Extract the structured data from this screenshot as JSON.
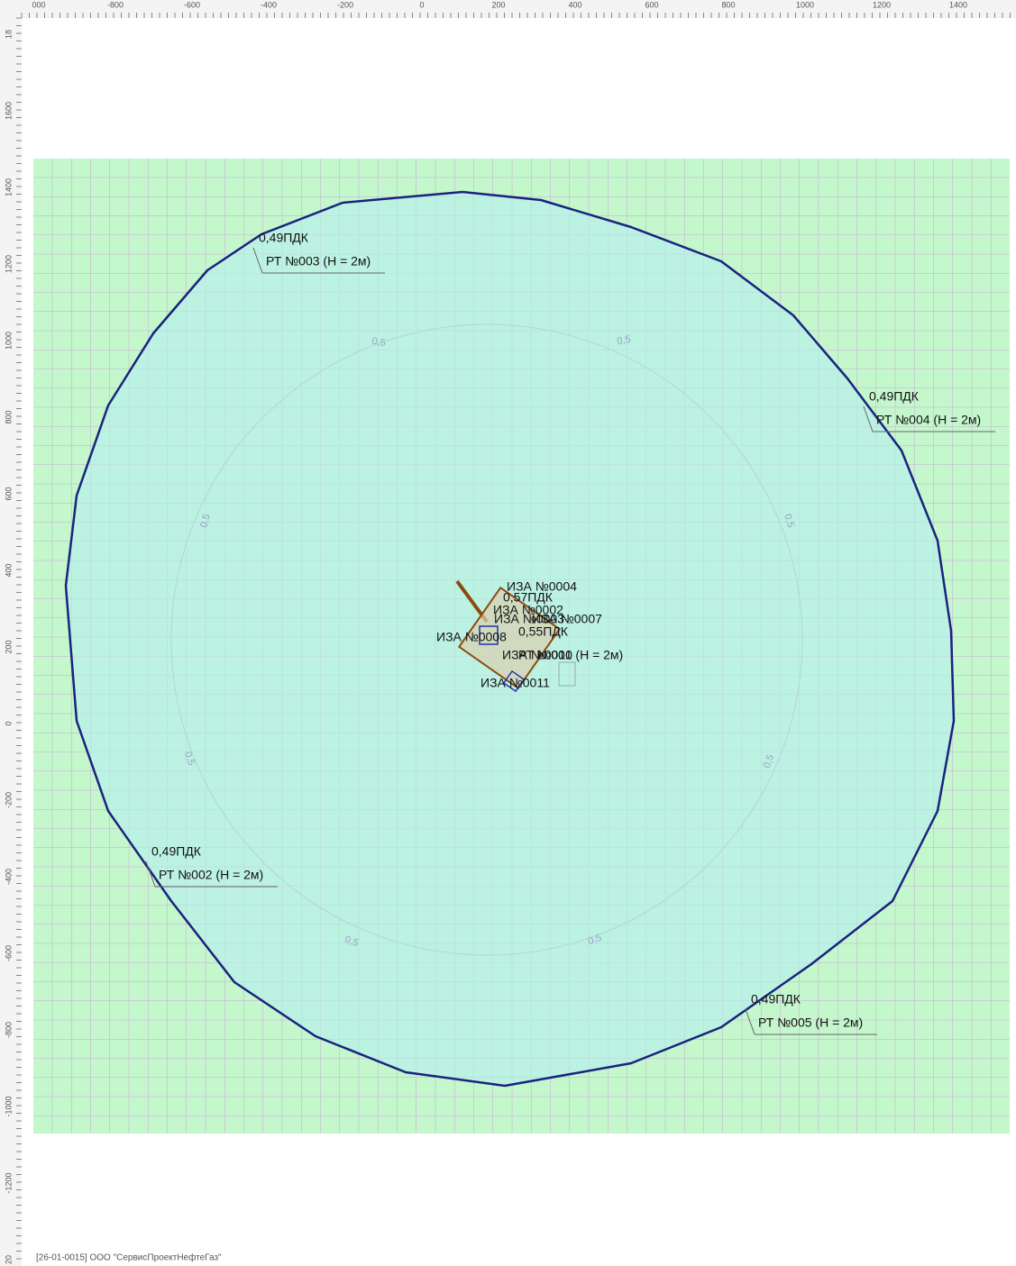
{
  "rulers": {
    "top": [
      "000",
      "-800",
      "-600",
      "-400",
      "-200",
      "0",
      "200",
      "400",
      "600",
      "800",
      "1000",
      "1200",
      "1400"
    ],
    "left": [
      "18",
      "1600",
      "1400",
      "1200",
      "1000",
      "800",
      "600",
      "400",
      "200",
      "0",
      "-200",
      "-400",
      "-600",
      "-800",
      "-1000",
      "-1200",
      "20"
    ]
  },
  "points": [
    {
      "value": "0,49ПДК",
      "label": "РТ №003 (Н = 2м)"
    },
    {
      "value": "0,49ПДК",
      "label": "РТ №004 (Н = 2м)"
    },
    {
      "value": "0,49ПДК",
      "label": "РТ №002 (Н = 2м)"
    },
    {
      "value": "0,49ПДК",
      "label": "РТ №005 (Н = 2м)"
    },
    {
      "value": "0,55ПДК",
      "label": "РТ №001 (Н = 2м)"
    }
  ],
  "sources": [
    "ИЗА №0004",
    "0,57ПДК",
    "ИЗА №0002",
    "ИЗА №0003",
    "ИЗА №0007",
    "ИЗА №0008",
    "ИЗА №0010",
    "ИЗА №0011"
  ],
  "isolines": [
    "0,5",
    "0,5",
    "0,5",
    "0,5",
    "0,5",
    "0,5",
    "0,5",
    "0,5"
  ],
  "footer": "[26-01-0015] ООО \"СервисПроектНефтеГаз\""
}
